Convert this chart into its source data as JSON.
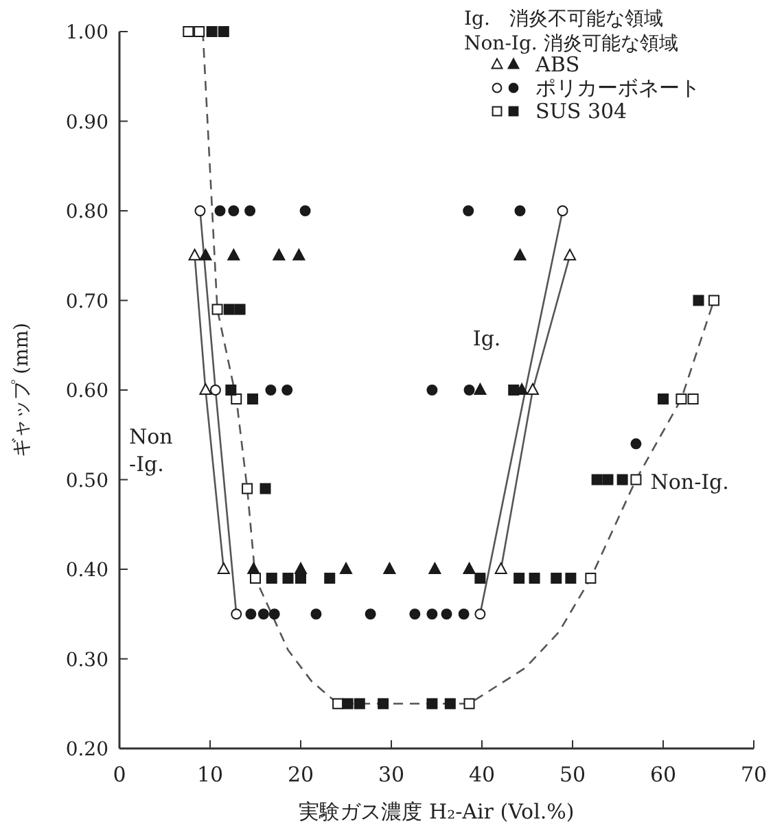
{
  "chart_data": {
    "type": "scatter",
    "xlabel": "実験ガス濃度 H₂-Air (Vol.%)",
    "ylabel": "ギャップ (mm)",
    "xlim": [
      0,
      70
    ],
    "ylim": [
      0.2,
      1.0
    ],
    "xticks": [
      0,
      10,
      20,
      30,
      40,
      50,
      60,
      70
    ],
    "yticks": [
      {
        "value": 0.2,
        "label": "0.20"
      },
      {
        "value": 0.3,
        "label": "0.30"
      },
      {
        "value": 0.4,
        "label": "0.40"
      },
      {
        "value": 0.5,
        "label": "0.50"
      },
      {
        "value": 0.6,
        "label": "0.60"
      },
      {
        "value": 0.7,
        "label": "0.70"
      },
      {
        "value": 0.8,
        "label": "0.80"
      },
      {
        "value": 0.9,
        "label": "0.90"
      },
      {
        "value": 1.0,
        "label": "1.00"
      }
    ],
    "grid": false,
    "legend": "top right",
    "annotations": [
      "Ig.　消炎不可能な領域",
      "Non-Ig. 消炎可能な領域",
      "Ig.",
      "Non\n-Ig.",
      "Non-Ig."
    ],
    "series": [
      {
        "type": "line",
        "color": "#555555",
        "line_style": "solid",
        "marker": "none",
        "x": [
          8.3,
          9.5,
          11.5
        ],
        "values": [
          0.75,
          0.6,
          0.4
        ]
      },
      {
        "type": "line",
        "color": "#555555",
        "line_style": "solid",
        "marker": "none",
        "x": [
          42.1,
          45.6,
          49.7
        ],
        "values": [
          0.4,
          0.6,
          0.75
        ]
      },
      {
        "type": "line",
        "color": "#555555",
        "line_style": "solid",
        "marker": "none",
        "x": [
          8.9,
          10.6,
          12.9
        ],
        "values": [
          0.8,
          0.6,
          0.35
        ]
      },
      {
        "type": "line",
        "color": "#555555",
        "line_style": "solid",
        "marker": "none",
        "x": [
          39.8,
          44.8,
          48.9
        ],
        "values": [
          0.35,
          0.6,
          0.8
        ]
      },
      {
        "type": "line",
        "color": "#555555",
        "line_style": "dashed",
        "marker": "none",
        "x": [
          9.2,
          10.8,
          12.9,
          14.1,
          15.0,
          18.6,
          21.2,
          24.1,
          38.6,
          44.8,
          48.5,
          52.0,
          57.0,
          62.0,
          65.6
        ],
        "values": [
          1.0,
          0.69,
          0.59,
          0.49,
          0.39,
          0.31,
          0.275,
          0.25,
          0.25,
          0.29,
          0.33,
          0.39,
          0.5,
          0.59,
          0.7
        ]
      },
      {
        "type": "scatter",
        "marker": "triangle",
        "color": "#ffffff",
        "x": [
          8.3,
          9.5,
          11.5,
          42.1,
          45.6,
          49.7
        ],
        "values": [
          0.75,
          0.6,
          0.4,
          0.4,
          0.6,
          0.75
        ]
      },
      {
        "type": "scatter",
        "name": "ABS",
        "marker": "triangle",
        "color": "#1a1a1a",
        "x": [
          9.5,
          12.6,
          17.6,
          19.8,
          14.8,
          20.0,
          25.0,
          29.8,
          34.8,
          38.6,
          39.8,
          44.4,
          44.2
        ],
        "values": [
          0.75,
          0.75,
          0.75,
          0.75,
          0.4,
          0.4,
          0.4,
          0.4,
          0.4,
          0.4,
          0.6,
          0.6,
          0.75
        ]
      },
      {
        "type": "scatter",
        "marker": "circle",
        "color": "#ffffff",
        "x": [
          8.9,
          10.6,
          12.9,
          39.8,
          48.9
        ],
        "values": [
          0.8,
          0.6,
          0.35,
          0.35,
          0.8
        ]
      },
      {
        "type": "scatter",
        "name": "ポリカーボネート",
        "marker": "circle",
        "color": "#1a1a1a",
        "x": [
          11.1,
          12.6,
          14.4,
          20.5,
          38.5,
          44.2,
          16.7,
          18.5,
          34.5,
          38.6,
          14.5,
          15.9,
          17.1,
          21.7,
          27.7,
          32.6,
          34.5,
          36.1,
          38.0,
          57.0
        ],
        "values": [
          0.8,
          0.8,
          0.8,
          0.8,
          0.8,
          0.8,
          0.6,
          0.6,
          0.6,
          0.6,
          0.35,
          0.35,
          0.35,
          0.35,
          0.35,
          0.35,
          0.35,
          0.35,
          0.35,
          0.54
        ]
      },
      {
        "type": "scatter",
        "marker": "square",
        "color": "#ffffff",
        "x": [
          7.6,
          8.8,
          10.8,
          12.9,
          14.1,
          15.0,
          24.1,
          38.6,
          52.0,
          57.0,
          62.0,
          63.3,
          65.6
        ],
        "values": [
          1.0,
          1.0,
          0.69,
          0.59,
          0.49,
          0.39,
          0.25,
          0.25,
          0.39,
          0.5,
          0.59,
          0.59,
          0.7
        ]
      },
      {
        "type": "scatter",
        "name": "SUS 304",
        "marker": "square",
        "color": "#1a1a1a",
        "x": [
          10.2,
          11.5,
          12.1,
          13.3,
          12.3,
          14.7,
          43.5,
          16.1,
          16.8,
          18.6,
          20.0,
          23.2,
          39.8,
          44.1,
          45.8,
          48.2,
          49.8,
          25.2,
          26.5,
          29.1,
          34.5,
          36.5,
          52.7,
          53.9,
          55.5,
          60.0,
          63.9
        ],
        "values": [
          1.0,
          1.0,
          0.69,
          0.69,
          0.6,
          0.59,
          0.6,
          0.49,
          0.39,
          0.39,
          0.39,
          0.39,
          0.39,
          0.39,
          0.39,
          0.39,
          0.39,
          0.25,
          0.25,
          0.25,
          0.25,
          0.25,
          0.5,
          0.5,
          0.5,
          0.59,
          0.7
        ]
      }
    ]
  }
}
